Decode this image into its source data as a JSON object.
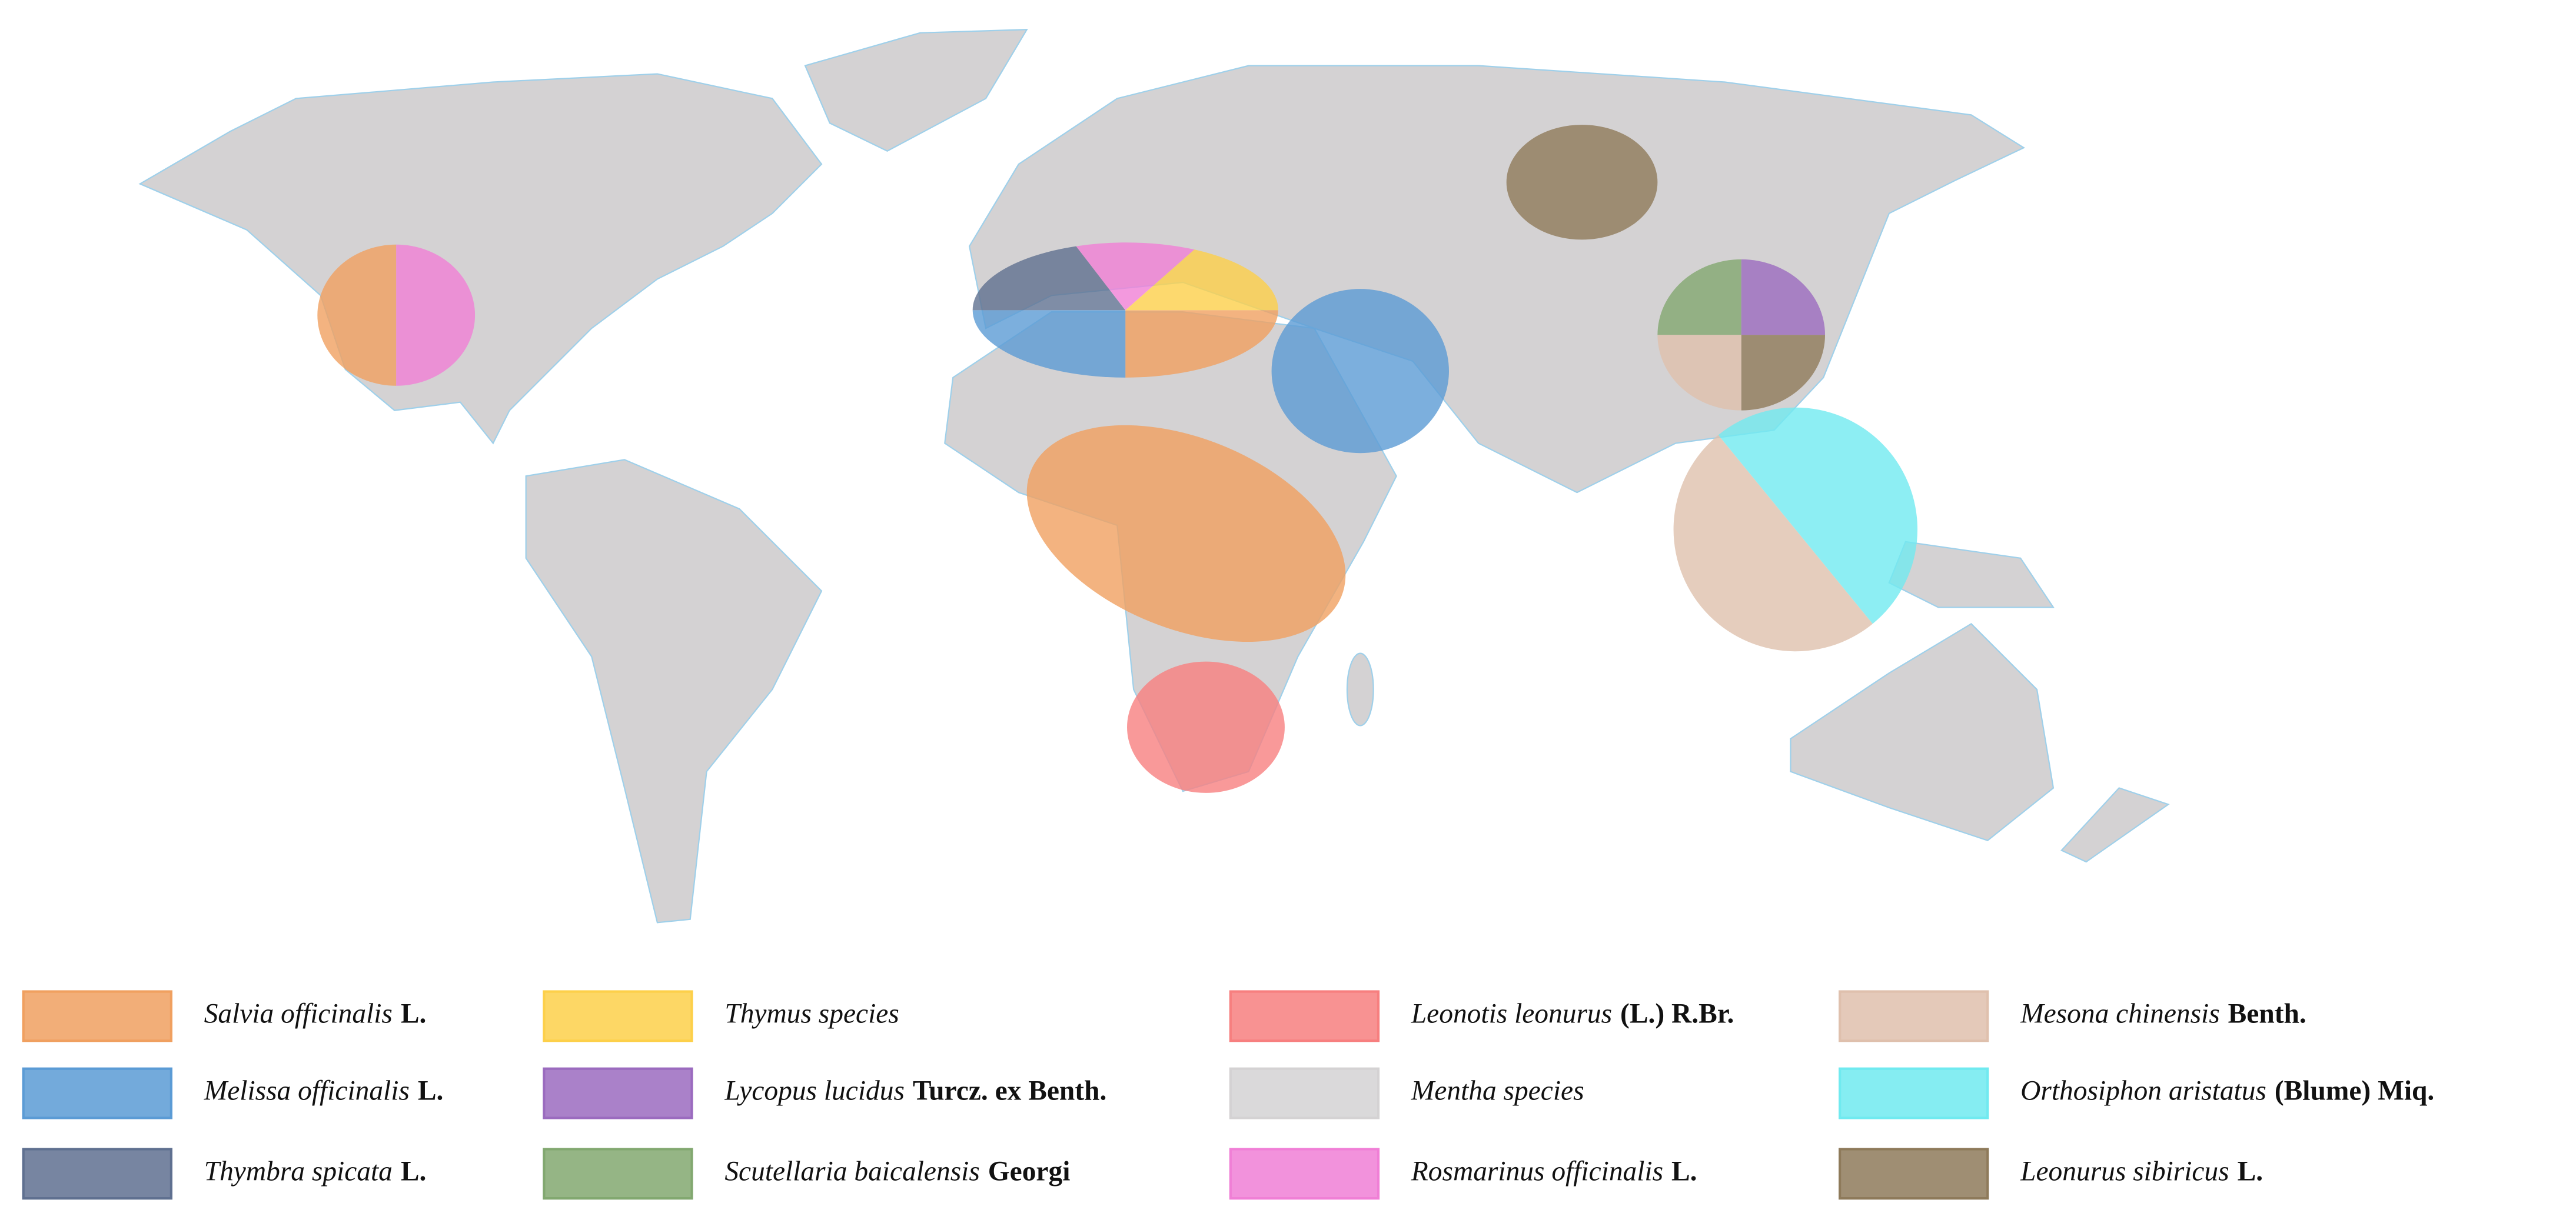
{
  "legend": {
    "items": [
      {
        "name": "Salvia officinalis",
        "authority": "L.",
        "color": "#f0a060"
      },
      {
        "name": "Melissa officinalis",
        "authority": "L.",
        "color": "#5b9bd5"
      },
      {
        "name": "Thymbra spicata",
        "authority": "L.",
        "color": "#5f7090"
      },
      {
        "name": "Thymus species",
        "color": "#fdd04a"
      },
      {
        "name": "Lycopus lucidus",
        "authority": "Turcz. ex Benth.",
        "color": "#9b6bbf"
      },
      {
        "name": "Scutellaria baicalensis",
        "authority": "Georgi",
        "color": "#82a870"
      },
      {
        "name": "Leonotis leonurus",
        "authority": "(L.) R.Br.",
        "color": "#f77f7f"
      },
      {
        "name": "Mentha species",
        "color": "#d4d2d3"
      },
      {
        "name": "Rosmarinus officinalis",
        "authority": "L.",
        "color": "#f07fd6"
      },
      {
        "name": "Mesona chinensis",
        "authority": "Benth.",
        "color": "#dfc0ad"
      },
      {
        "name": "Orthosiphon aristatus",
        "authority": "(Blume) Miq.",
        "color": "#70eaf0"
      },
      {
        "name": "Leonurus sibiricus",
        "authority": "L.",
        "color": "#8e7a5a"
      }
    ]
  }
}
